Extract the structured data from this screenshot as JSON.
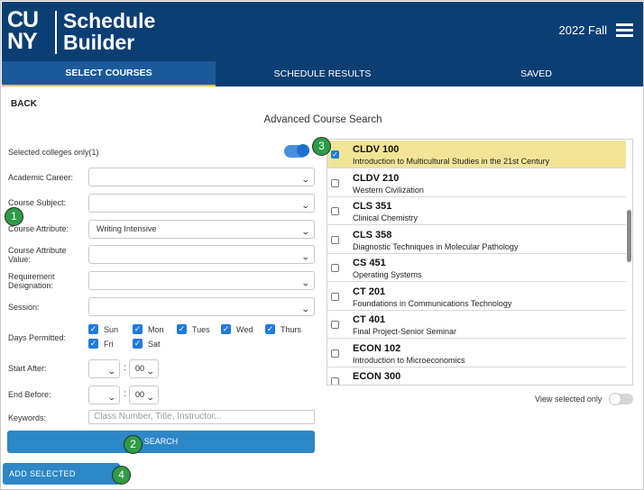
{
  "header": {
    "logo_line1": "CU",
    "logo_line2": "NY",
    "title_line1": "Schedule",
    "title_line2": "Builder",
    "term": "2022 Fall",
    "menu_icon": "hamburger-menu-icon"
  },
  "tabs": [
    {
      "label": "SELECT COURSES",
      "active": true
    },
    {
      "label": "SCHEDULE RESULTS",
      "active": false
    },
    {
      "label": "SAVED",
      "active": false
    }
  ],
  "back_label": "BACK",
  "page_title": "Advanced Course Search",
  "form": {
    "selected_colleges_label": "Selected colleges only(1)",
    "selected_colleges_on": true,
    "academic_career_label": "Academic Career:",
    "academic_career_value": "",
    "course_subject_label": "Course Subject:",
    "course_subject_value": "",
    "course_attribute_label": "Course Attribute:",
    "course_attribute_value": "Writing Intensive",
    "course_attribute_value_label_1": "Course Attribute",
    "course_attribute_value_label_2": "Value:",
    "course_attribute_value_value": "",
    "requirement_label_1": "Requirement",
    "requirement_label_2": "Designation:",
    "requirement_value": "",
    "session_label": "Session:",
    "session_value": "",
    "days_label": "Days Permitted:",
    "days": [
      {
        "label": "Sun",
        "checked": true
      },
      {
        "label": "Mon",
        "checked": true
      },
      {
        "label": "Tues",
        "checked": true
      },
      {
        "label": "Wed",
        "checked": true
      },
      {
        "label": "Thurs",
        "checked": true
      },
      {
        "label": "Fri",
        "checked": true
      },
      {
        "label": "Sat",
        "checked": true
      }
    ],
    "start_after_label": "Start After:",
    "start_hour": "",
    "start_minute": "00",
    "end_before_label": "End Before:",
    "end_hour": "",
    "end_minute": "00",
    "time_separator": ":",
    "keywords_label": "Keywords:",
    "keywords_placeholder": "Class Number, Title, Instructor...",
    "search_label": "SEARCH"
  },
  "add_selected_label": "ADD SELECTED COURSES",
  "courses": [
    {
      "code": "CLDV 100",
      "title": "Introduction to Multicultural Studies in the 21st Century",
      "selected": true
    },
    {
      "code": "CLDV 210",
      "title": "Western Civilization",
      "selected": false
    },
    {
      "code": "CLS 351",
      "title": "Clinical Chemistry",
      "selected": false
    },
    {
      "code": "CLS 358",
      "title": "Diagnostic Techniques in Molecular Pathology",
      "selected": false
    },
    {
      "code": "CS 451",
      "title": "Operating Systems",
      "selected": false
    },
    {
      "code": "CT 201",
      "title": "Foundations in Communications Technology",
      "selected": false
    },
    {
      "code": "CT 401",
      "title": "Final Project-Senior Seminar",
      "selected": false
    },
    {
      "code": "ECON 102",
      "title": "Introduction to Microeconomics",
      "selected": false
    },
    {
      "code": "ECON 300",
      "title": "",
      "selected": false
    }
  ],
  "view_selected_label": "View selected only",
  "view_selected_on": false,
  "annotations": [
    "1",
    "2",
    "3",
    "4"
  ],
  "colors": {
    "navy": "#0b3f74",
    "accent": "#2d87c6",
    "highlight": "#f1e497",
    "badge": "#2e9c47"
  }
}
